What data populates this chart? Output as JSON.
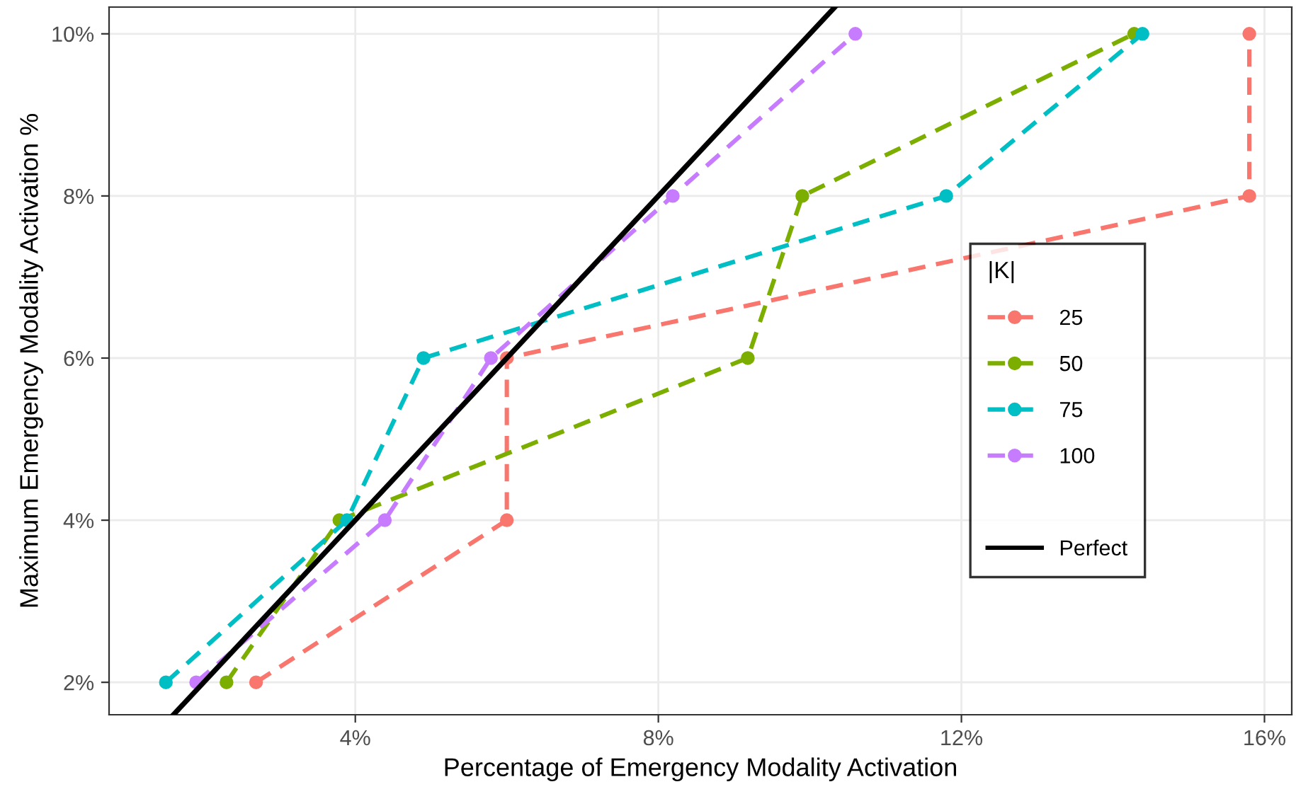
{
  "chart_data": {
    "type": "line",
    "xlabel": "Percentage of Emergency Modality Activation",
    "ylabel": "Maximum Emergency Modality Activation %",
    "legend_title": "|K|",
    "legend": "right",
    "grid": true,
    "marker": "circle",
    "line_style": "dashed",
    "xlim": [
      0.75,
      16.36
    ],
    "ylim": [
      1.6,
      10.33
    ],
    "xticks": [
      {
        "value": 4,
        "label": "4%"
      },
      {
        "value": 8,
        "label": "8%"
      },
      {
        "value": 12,
        "label": "12%"
      },
      {
        "value": 16,
        "label": "16%"
      }
    ],
    "yticks": [
      {
        "value": 2,
        "label": "2%"
      },
      {
        "value": 4,
        "label": "4%"
      },
      {
        "value": 6,
        "label": "6%"
      },
      {
        "value": 8,
        "label": "8%"
      },
      {
        "value": 10,
        "label": "10%"
      }
    ],
    "series": [
      {
        "name": "25",
        "color": "#f8766d",
        "x": [
          2.69,
          6.0,
          6.0,
          15.8,
          15.8
        ],
        "values": [
          2,
          4,
          6,
          8,
          10
        ]
      },
      {
        "name": "50",
        "color": "#7cae00",
        "x": [
          2.3,
          3.79,
          9.18,
          9.9,
          14.28
        ],
        "values": [
          2,
          4,
          6,
          8,
          10
        ]
      },
      {
        "name": "75",
        "color": "#00bfc4",
        "x": [
          1.5,
          3.89,
          4.9,
          11.8,
          14.39
        ],
        "values": [
          2,
          4,
          6,
          8,
          10
        ]
      },
      {
        "name": "100",
        "color": "#c77cff",
        "x": [
          1.9,
          4.39,
          5.79,
          8.19,
          10.6
        ],
        "values": [
          2,
          4,
          6,
          8,
          10
        ]
      },
      {
        "name": "Perfect",
        "color": "#000000",
        "x": [
          1.6,
          10.33
        ],
        "values": [
          1.6,
          10.33
        ],
        "marker": "none",
        "line_style": "solid"
      }
    ]
  }
}
